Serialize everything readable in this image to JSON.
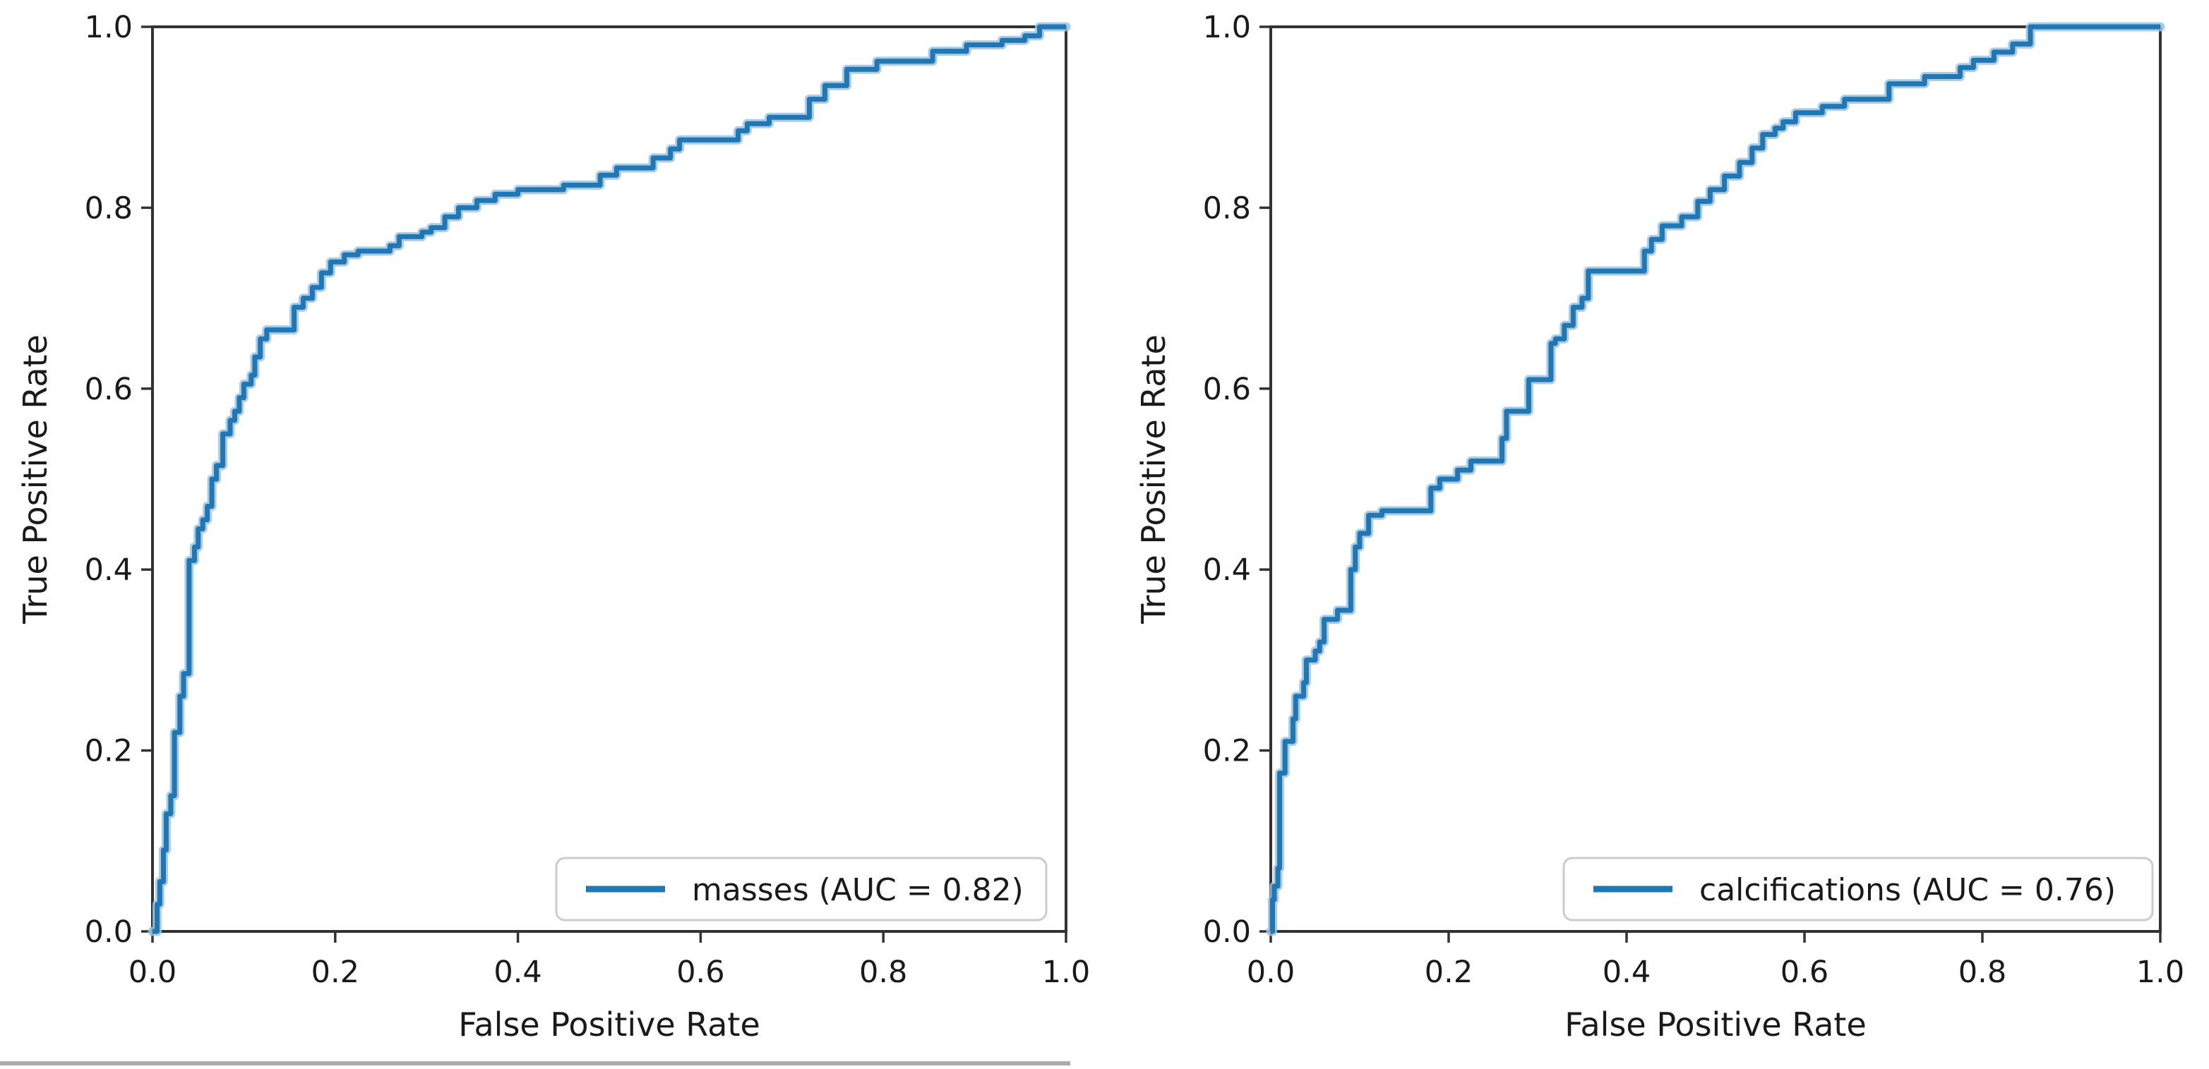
{
  "page": {
    "background": "#ffffff"
  },
  "bottom_rule": {
    "color": "#ababab"
  },
  "chart_data": [
    {
      "type": "line",
      "subtype": "roc-curve",
      "title": "",
      "xlabel": "False Positive Rate",
      "ylabel": "True Positive Rate",
      "xlim": [
        0.0,
        1.0
      ],
      "ylim": [
        0.0,
        1.0
      ],
      "x_ticks": [
        "0.0",
        "0.2",
        "0.4",
        "0.6",
        "0.8",
        "1.0"
      ],
      "y_ticks": [
        "0.0",
        "0.2",
        "0.4",
        "0.6",
        "0.8",
        "1.0"
      ],
      "grid": false,
      "legend": {
        "position": "lower right",
        "label": "masses (AUC = 0.82)"
      },
      "line_color": "#1f77b4",
      "line_halo_color": "#9ec3e2",
      "series": [
        {
          "name": "masses",
          "auc": 0.82,
          "color": "#1f77b4",
          "points": [
            [
              0,
              0
            ],
            [
              0.005,
              0
            ],
            [
              0.005,
              0.03
            ],
            [
              0.008,
              0.03
            ],
            [
              0.008,
              0.055
            ],
            [
              0.012,
              0.055
            ],
            [
              0.012,
              0.09
            ],
            [
              0.015,
              0.09
            ],
            [
              0.015,
              0.13
            ],
            [
              0.02,
              0.13
            ],
            [
              0.02,
              0.15
            ],
            [
              0.024,
              0.15
            ],
            [
              0.024,
              0.22
            ],
            [
              0.03,
              0.22
            ],
            [
              0.03,
              0.26
            ],
            [
              0.034,
              0.26
            ],
            [
              0.034,
              0.285
            ],
            [
              0.04,
              0.285
            ],
            [
              0.04,
              0.41
            ],
            [
              0.046,
              0.41
            ],
            [
              0.046,
              0.425
            ],
            [
              0.05,
              0.425
            ],
            [
              0.05,
              0.445
            ],
            [
              0.055,
              0.445
            ],
            [
              0.055,
              0.455
            ],
            [
              0.06,
              0.455
            ],
            [
              0.06,
              0.47
            ],
            [
              0.065,
              0.47
            ],
            [
              0.065,
              0.5
            ],
            [
              0.07,
              0.5
            ],
            [
              0.07,
              0.515
            ],
            [
              0.077,
              0.515
            ],
            [
              0.077,
              0.55
            ],
            [
              0.085,
              0.55
            ],
            [
              0.085,
              0.565
            ],
            [
              0.09,
              0.565
            ],
            [
              0.09,
              0.575
            ],
            [
              0.095,
              0.575
            ],
            [
              0.095,
              0.59
            ],
            [
              0.1,
              0.59
            ],
            [
              0.1,
              0.605
            ],
            [
              0.108,
              0.605
            ],
            [
              0.108,
              0.615
            ],
            [
              0.112,
              0.615
            ],
            [
              0.112,
              0.635
            ],
            [
              0.118,
              0.635
            ],
            [
              0.118,
              0.655
            ],
            [
              0.125,
              0.655
            ],
            [
              0.125,
              0.665
            ],
            [
              0.155,
              0.665
            ],
            [
              0.155,
              0.69
            ],
            [
              0.165,
              0.69
            ],
            [
              0.165,
              0.7
            ],
            [
              0.175,
              0.7
            ],
            [
              0.175,
              0.712
            ],
            [
              0.185,
              0.712
            ],
            [
              0.185,
              0.728
            ],
            [
              0.195,
              0.728
            ],
            [
              0.195,
              0.74
            ],
            [
              0.21,
              0.74
            ],
            [
              0.21,
              0.748
            ],
            [
              0.225,
              0.748
            ],
            [
              0.225,
              0.752
            ],
            [
              0.26,
              0.752
            ],
            [
              0.26,
              0.758
            ],
            [
              0.27,
              0.758
            ],
            [
              0.27,
              0.768
            ],
            [
              0.295,
              0.768
            ],
            [
              0.295,
              0.773
            ],
            [
              0.305,
              0.773
            ],
            [
              0.305,
              0.778
            ],
            [
              0.32,
              0.778
            ],
            [
              0.32,
              0.79
            ],
            [
              0.335,
              0.79
            ],
            [
              0.335,
              0.8
            ],
            [
              0.355,
              0.8
            ],
            [
              0.355,
              0.808
            ],
            [
              0.375,
              0.808
            ],
            [
              0.375,
              0.815
            ],
            [
              0.4,
              0.815
            ],
            [
              0.4,
              0.82
            ],
            [
              0.45,
              0.82
            ],
            [
              0.45,
              0.825
            ],
            [
              0.49,
              0.825
            ],
            [
              0.49,
              0.836
            ],
            [
              0.508,
              0.836
            ],
            [
              0.508,
              0.844
            ],
            [
              0.548,
              0.844
            ],
            [
              0.548,
              0.855
            ],
            [
              0.567,
              0.855
            ],
            [
              0.567,
              0.865
            ],
            [
              0.577,
              0.865
            ],
            [
              0.577,
              0.875
            ],
            [
              0.641,
              0.875
            ],
            [
              0.641,
              0.885
            ],
            [
              0.651,
              0.885
            ],
            [
              0.651,
              0.893
            ],
            [
              0.675,
              0.893
            ],
            [
              0.675,
              0.9
            ],
            [
              0.719,
              0.9
            ],
            [
              0.719,
              0.92
            ],
            [
              0.736,
              0.92
            ],
            [
              0.736,
              0.935
            ],
            [
              0.76,
              0.935
            ],
            [
              0.76,
              0.953
            ],
            [
              0.793,
              0.953
            ],
            [
              0.793,
              0.962
            ],
            [
              0.854,
              0.962
            ],
            [
              0.854,
              0.973
            ],
            [
              0.891,
              0.973
            ],
            [
              0.891,
              0.98
            ],
            [
              0.93,
              0.98
            ],
            [
              0.93,
              0.985
            ],
            [
              0.955,
              0.985
            ],
            [
              0.955,
              0.99
            ],
            [
              0.971,
              0.99
            ],
            [
              0.971,
              1
            ],
            [
              1,
              1
            ]
          ]
        }
      ]
    },
    {
      "type": "line",
      "subtype": "roc-curve",
      "title": "",
      "xlabel": "False Positive Rate",
      "ylabel": "True Positive Rate",
      "xlim": [
        0.0,
        1.0
      ],
      "ylim": [
        0.0,
        1.0
      ],
      "x_ticks": [
        "0.0",
        "0.2",
        "0.4",
        "0.6",
        "0.8",
        "1.0"
      ],
      "y_ticks": [
        "0.0",
        "0.2",
        "0.4",
        "0.6",
        "0.8",
        "1.0"
      ],
      "grid": false,
      "legend": {
        "position": "lower right",
        "label": "calcifications (AUC = 0.76)"
      },
      "line_color": "#1f77b4",
      "line_halo_color": "#9ec3e2",
      "series": [
        {
          "name": "calcifications",
          "auc": 0.76,
          "color": "#1f77b4",
          "points": [
            [
              0,
              0
            ],
            [
              0.002,
              0
            ],
            [
              0.002,
              0.035
            ],
            [
              0.004,
              0.035
            ],
            [
              0.004,
              0.05
            ],
            [
              0.008,
              0.05
            ],
            [
              0.008,
              0.07
            ],
            [
              0.01,
              0.07
            ],
            [
              0.01,
              0.175
            ],
            [
              0.016,
              0.175
            ],
            [
              0.016,
              0.21
            ],
            [
              0.025,
              0.21
            ],
            [
              0.025,
              0.235
            ],
            [
              0.028,
              0.235
            ],
            [
              0.028,
              0.26
            ],
            [
              0.037,
              0.26
            ],
            [
              0.037,
              0.275
            ],
            [
              0.04,
              0.275
            ],
            [
              0.04,
              0.3
            ],
            [
              0.05,
              0.3
            ],
            [
              0.05,
              0.31
            ],
            [
              0.055,
              0.31
            ],
            [
              0.055,
              0.32
            ],
            [
              0.06,
              0.32
            ],
            [
              0.06,
              0.345
            ],
            [
              0.075,
              0.345
            ],
            [
              0.075,
              0.355
            ],
            [
              0.09,
              0.355
            ],
            [
              0.09,
              0.4
            ],
            [
              0.095,
              0.4
            ],
            [
              0.095,
              0.425
            ],
            [
              0.1,
              0.425
            ],
            [
              0.1,
              0.44
            ],
            [
              0.11,
              0.44
            ],
            [
              0.11,
              0.46
            ],
            [
              0.125,
              0.46
            ],
            [
              0.125,
              0.465
            ],
            [
              0.18,
              0.465
            ],
            [
              0.18,
              0.49
            ],
            [
              0.19,
              0.49
            ],
            [
              0.19,
              0.5
            ],
            [
              0.21,
              0.5
            ],
            [
              0.21,
              0.51
            ],
            [
              0.225,
              0.51
            ],
            [
              0.225,
              0.52
            ],
            [
              0.26,
              0.52
            ],
            [
              0.26,
              0.545
            ],
            [
              0.265,
              0.545
            ],
            [
              0.265,
              0.575
            ],
            [
              0.29,
              0.575
            ],
            [
              0.29,
              0.61
            ],
            [
              0.315,
              0.61
            ],
            [
              0.315,
              0.65
            ],
            [
              0.32,
              0.65
            ],
            [
              0.32,
              0.655
            ],
            [
              0.33,
              0.655
            ],
            [
              0.33,
              0.67
            ],
            [
              0.34,
              0.67
            ],
            [
              0.34,
              0.69
            ],
            [
              0.35,
              0.69
            ],
            [
              0.35,
              0.7
            ],
            [
              0.357,
              0.7
            ],
            [
              0.357,
              0.73
            ],
            [
              0.42,
              0.73
            ],
            [
              0.42,
              0.752
            ],
            [
              0.428,
              0.752
            ],
            [
              0.428,
              0.765
            ],
            [
              0.44,
              0.765
            ],
            [
              0.44,
              0.78
            ],
            [
              0.462,
              0.78
            ],
            [
              0.462,
              0.79
            ],
            [
              0.48,
              0.79
            ],
            [
              0.48,
              0.807
            ],
            [
              0.494,
              0.807
            ],
            [
              0.494,
              0.82
            ],
            [
              0.51,
              0.82
            ],
            [
              0.51,
              0.835
            ],
            [
              0.527,
              0.835
            ],
            [
              0.527,
              0.85
            ],
            [
              0.541,
              0.85
            ],
            [
              0.541,
              0.866
            ],
            [
              0.553,
              0.866
            ],
            [
              0.553,
              0.881
            ],
            [
              0.567,
              0.881
            ],
            [
              0.567,
              0.888
            ],
            [
              0.576,
              0.888
            ],
            [
              0.576,
              0.895
            ],
            [
              0.59,
              0.895
            ],
            [
              0.59,
              0.905
            ],
            [
              0.62,
              0.905
            ],
            [
              0.62,
              0.912
            ],
            [
              0.645,
              0.912
            ],
            [
              0.645,
              0.92
            ],
            [
              0.695,
              0.92
            ],
            [
              0.695,
              0.937
            ],
            [
              0.735,
              0.937
            ],
            [
              0.735,
              0.945
            ],
            [
              0.775,
              0.945
            ],
            [
              0.775,
              0.955
            ],
            [
              0.79,
              0.955
            ],
            [
              0.79,
              0.963
            ],
            [
              0.813,
              0.963
            ],
            [
              0.813,
              0.972
            ],
            [
              0.834,
              0.972
            ],
            [
              0.834,
              0.981
            ],
            [
              0.854,
              0.981
            ],
            [
              0.854,
              1
            ],
            [
              1,
              1
            ]
          ]
        }
      ]
    }
  ]
}
